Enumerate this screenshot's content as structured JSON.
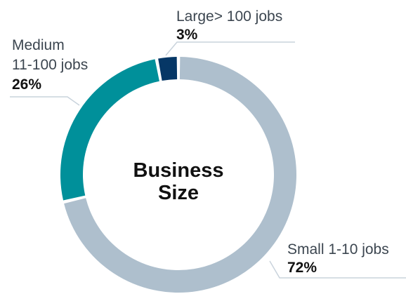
{
  "chart_data": {
    "type": "pie",
    "title": "Business Size",
    "title_lines": [
      "Business",
      "Size"
    ],
    "legend": "none",
    "slices": [
      {
        "id": "small",
        "label_lines": [
          "Small 1-10 jobs"
        ],
        "value": 72,
        "value_label": "72%",
        "color": "#aebfcd"
      },
      {
        "id": "medium",
        "label_lines": [
          "Medium",
          "11-100 jobs"
        ],
        "value": 26,
        "value_label": "26%",
        "color": "#00909a"
      },
      {
        "id": "large",
        "label_lines": [
          "Large> 100 jobs"
        ],
        "value": 3,
        "value_label": "3%",
        "color": "#063766"
      }
    ]
  }
}
